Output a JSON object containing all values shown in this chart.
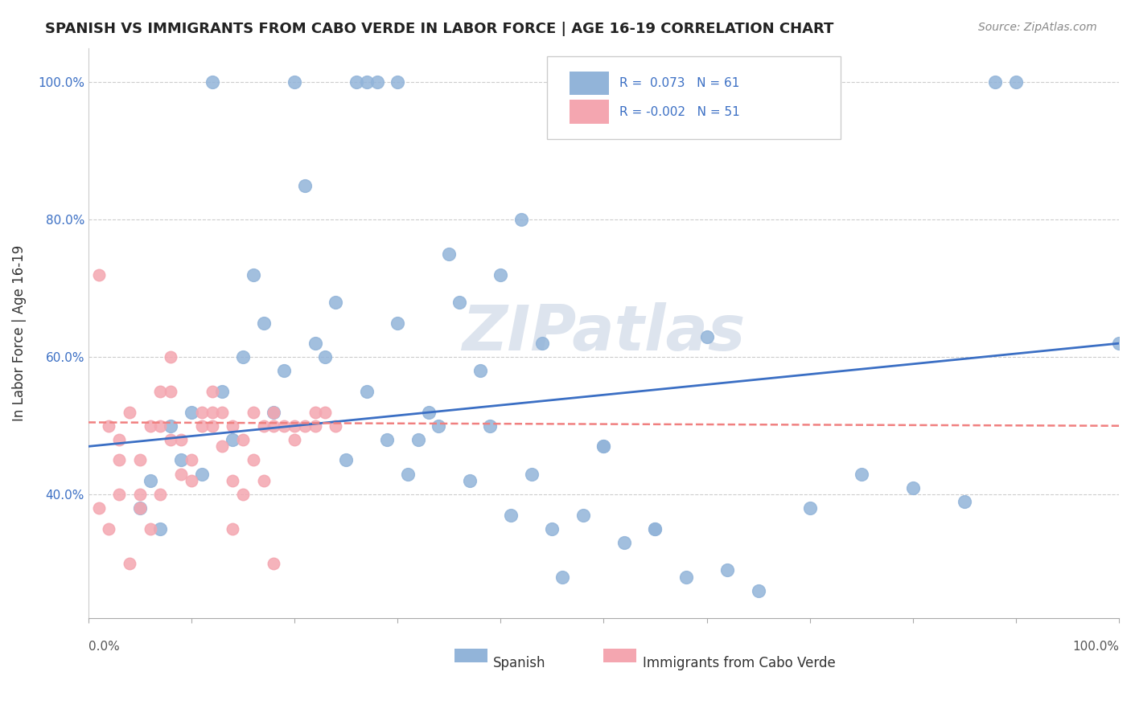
{
  "title": "SPANISH VS IMMIGRANTS FROM CABO VERDE IN LABOR FORCE | AGE 16-19 CORRELATION CHART",
  "source": "Source: ZipAtlas.com",
  "ylabel": "In Labor Force | Age 16-19",
  "legend_blue_text": "R =  0.073   N = 61",
  "legend_pink_text": "R = -0.002   N = 51",
  "legend_label_blue": "Spanish",
  "legend_label_pink": "Immigrants from Cabo Verde",
  "blue_color": "#92b4d9",
  "pink_color": "#f4a6b0",
  "blue_line_color": "#3b6fc4",
  "pink_line_color": "#f08080",
  "watermark": "ZIPatlas",
  "blue_scatter_x": [
    0.12,
    0.2,
    0.26,
    0.27,
    0.28,
    0.3,
    0.05,
    0.06,
    0.07,
    0.08,
    0.09,
    0.1,
    0.11,
    0.13,
    0.14,
    0.15,
    0.16,
    0.17,
    0.18,
    0.19,
    0.21,
    0.22,
    0.23,
    0.24,
    0.25,
    0.27,
    0.29,
    0.31,
    0.33,
    0.35,
    0.36,
    0.38,
    0.4,
    0.42,
    0.43,
    0.45,
    0.46,
    0.48,
    0.5,
    0.52,
    0.55,
    0.58,
    0.6,
    0.62,
    0.65,
    0.7,
    0.75,
    0.8,
    0.85,
    0.88,
    0.9,
    1.0,
    0.3,
    0.32,
    0.34,
    0.37,
    0.39,
    0.41,
    0.44,
    0.5,
    0.55
  ],
  "blue_scatter_y": [
    1.0,
    1.0,
    1.0,
    1.0,
    1.0,
    1.0,
    0.38,
    0.42,
    0.35,
    0.5,
    0.45,
    0.52,
    0.43,
    0.55,
    0.48,
    0.6,
    0.72,
    0.65,
    0.52,
    0.58,
    0.85,
    0.62,
    0.6,
    0.68,
    0.45,
    0.55,
    0.48,
    0.43,
    0.52,
    0.75,
    0.68,
    0.58,
    0.72,
    0.8,
    0.43,
    0.35,
    0.28,
    0.37,
    0.47,
    0.33,
    0.35,
    0.28,
    0.63,
    0.29,
    0.26,
    0.38,
    0.43,
    0.41,
    0.39,
    1.0,
    1.0,
    0.62,
    0.65,
    0.48,
    0.5,
    0.42,
    0.5,
    0.37,
    0.62,
    0.47,
    0.35
  ],
  "pink_scatter_x": [
    0.01,
    0.02,
    0.03,
    0.04,
    0.05,
    0.06,
    0.07,
    0.08,
    0.09,
    0.1,
    0.11,
    0.12,
    0.13,
    0.14,
    0.15,
    0.16,
    0.17,
    0.18,
    0.19,
    0.2,
    0.21,
    0.22,
    0.23,
    0.24,
    0.01,
    0.02,
    0.03,
    0.04,
    0.05,
    0.06,
    0.07,
    0.08,
    0.09,
    0.1,
    0.11,
    0.12,
    0.13,
    0.14,
    0.15,
    0.16,
    0.17,
    0.18,
    0.03,
    0.05,
    0.07,
    0.08,
    0.12,
    0.14,
    0.18,
    0.2,
    0.22
  ],
  "pink_scatter_y": [
    0.72,
    0.5,
    0.48,
    0.52,
    0.45,
    0.5,
    0.5,
    0.55,
    0.48,
    0.45,
    0.52,
    0.55,
    0.47,
    0.5,
    0.48,
    0.52,
    0.5,
    0.52,
    0.5,
    0.48,
    0.5,
    0.5,
    0.52,
    0.5,
    0.38,
    0.35,
    0.4,
    0.3,
    0.4,
    0.35,
    0.55,
    0.6,
    0.43,
    0.42,
    0.5,
    0.5,
    0.52,
    0.35,
    0.4,
    0.45,
    0.42,
    0.3,
    0.45,
    0.38,
    0.4,
    0.48,
    0.52,
    0.42,
    0.5,
    0.5,
    0.52
  ],
  "blue_line_x": [
    0.0,
    1.0
  ],
  "blue_line_y": [
    0.47,
    0.62
  ],
  "pink_line_x": [
    0.0,
    1.0
  ],
  "pink_line_y": [
    0.505,
    0.5
  ],
  "xlim": [
    0.0,
    1.0
  ],
  "ylim": [
    0.22,
    1.05
  ],
  "yticks": [
    0.4,
    0.6,
    0.8,
    1.0
  ],
  "ytick_labels": [
    "40.0%",
    "60.0%",
    "80.0%",
    "100.0%"
  ]
}
